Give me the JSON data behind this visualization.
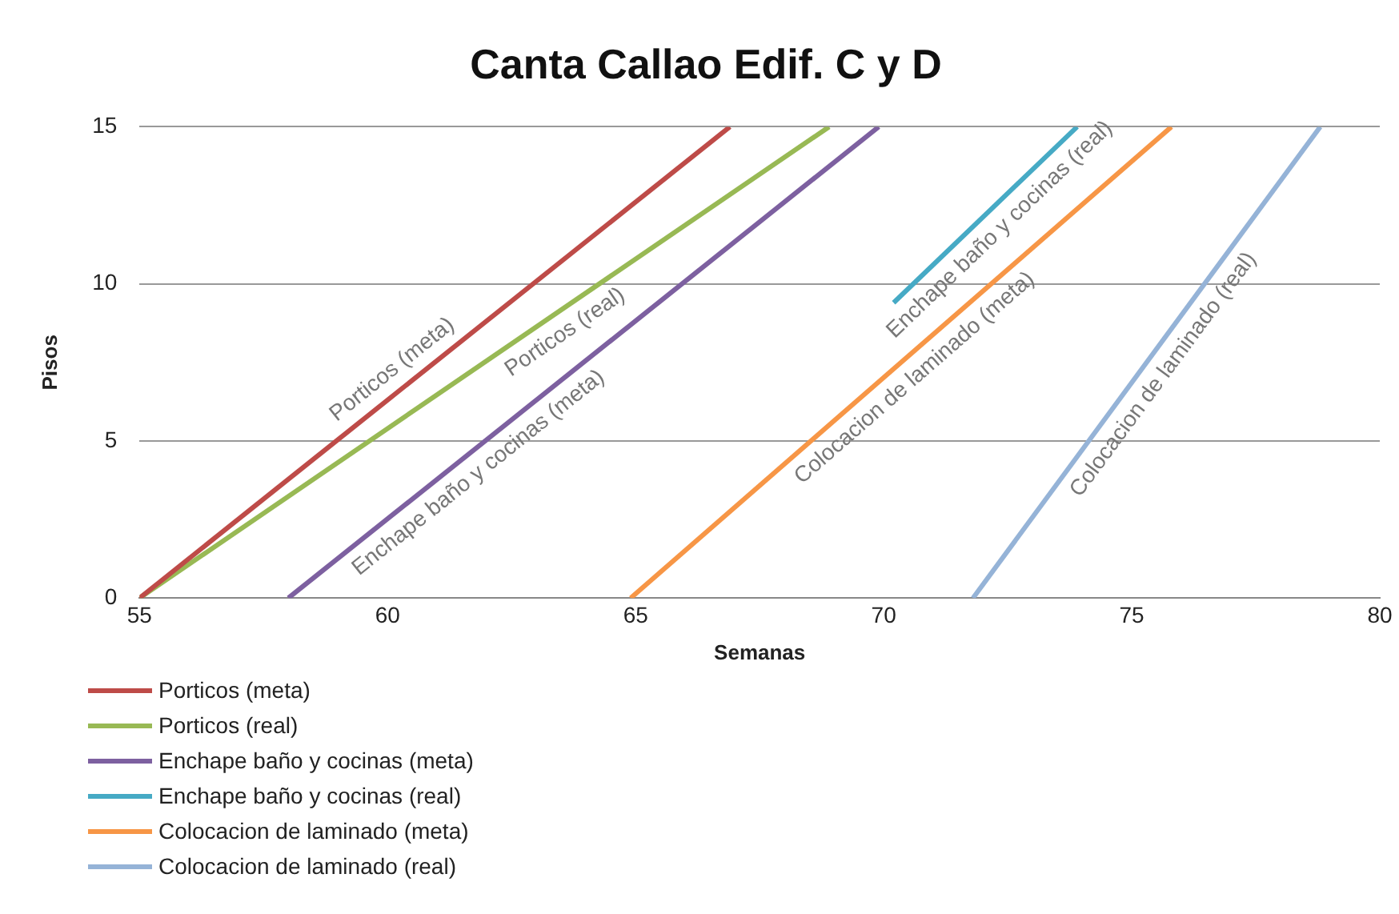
{
  "chart_data": {
    "type": "line",
    "title": "Canta Callao Edif. C y D",
    "xlabel": "Semanas",
    "ylabel": "Pisos",
    "xlim": [
      55,
      80
    ],
    "xticks": [
      55,
      60,
      65,
      70,
      75,
      80
    ],
    "ylim": [
      0,
      15
    ],
    "yticks": [
      0,
      5,
      10,
      15
    ],
    "grid": "y",
    "legend": "bottom",
    "marker": "none",
    "series": [
      {
        "name": "Porticos (meta)",
        "color": "#be4b48",
        "x": [
          55,
          66.9
        ],
        "values": [
          0,
          15
        ]
      },
      {
        "name": "Porticos (real)",
        "color": "#98b954",
        "x": [
          55,
          68.9
        ],
        "values": [
          0,
          15
        ]
      },
      {
        "name": "Enchape baño y cocinas (meta)",
        "color": "#7d60a0",
        "x": [
          58,
          69.9
        ],
        "values": [
          0,
          15
        ]
      },
      {
        "name": "Enchape baño y cocinas (real)",
        "color": "#46aac5",
        "x": [
          70.2,
          73.9
        ],
        "values": [
          9.4,
          15
        ]
      },
      {
        "name": "Colocacion de laminado (meta)",
        "color": "#f79646",
        "x": [
          64.9,
          75.8
        ],
        "values": [
          0,
          15
        ]
      },
      {
        "name": "Colocacion de laminado (real)",
        "color": "#95b3d7",
        "x": [
          71.8,
          78.8
        ],
        "values": [
          0,
          15
        ]
      }
    ]
  }
}
